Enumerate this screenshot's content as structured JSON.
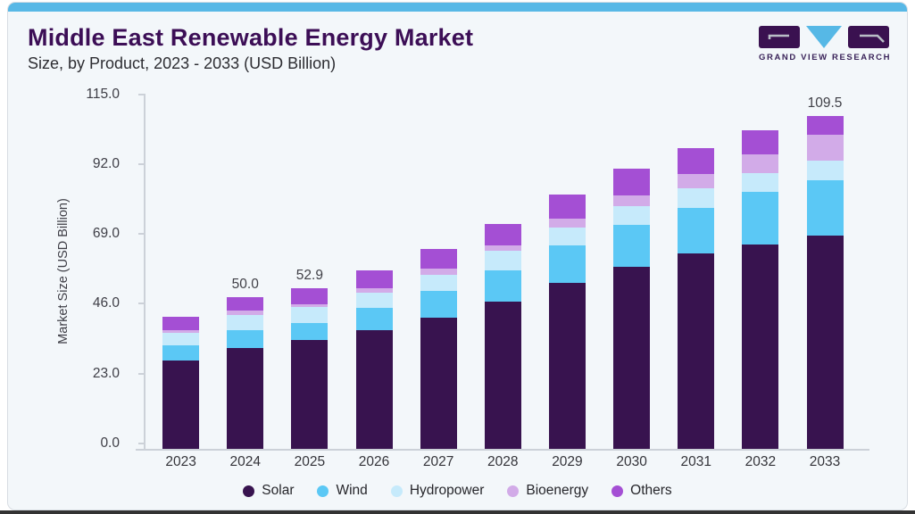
{
  "header": {
    "title": "Middle East Renewable Energy Market",
    "subtitle": "Size, by Product, 2023 - 2033 (USD Billion)"
  },
  "logo": {
    "text": "GRAND VIEW RESEARCH"
  },
  "colors": {
    "accent_strip": "#58b8e6",
    "card_background": "#f3f7fa",
    "card_border": "#d8dde3",
    "title_text": "#3c0e56",
    "axis_line": "#ccd1d8",
    "logo_dark": "#3a1150",
    "logo_light_blue": "#56b8e6"
  },
  "chart_data": {
    "type": "bar",
    "variant": "stacked",
    "title": "Middle East Renewable Energy Market",
    "subtitle": "Size, by Product, 2023 - 2033 (USD Billion)",
    "xlabel": "",
    "ylabel": "Market Size (USD Billion)",
    "ylim": [
      0,
      115
    ],
    "ytick_labels": [
      "0.0",
      "23.0",
      "46.0",
      "69.0",
      "92.0",
      "115.0"
    ],
    "ytick_values": [
      0,
      23,
      46,
      69,
      92,
      115
    ],
    "grid": false,
    "legend_position": "bottom",
    "categories": [
      "2023",
      "2024",
      "2025",
      "2026",
      "2027",
      "2028",
      "2029",
      "2030",
      "2031",
      "2032",
      "2033"
    ],
    "series": [
      {
        "name": "Solar",
        "color": "#38134f",
        "values": [
          29.0,
          33.1,
          35.8,
          39.0,
          43.1,
          48.4,
          54.6,
          60.0,
          64.2,
          67.4,
          70.3
        ]
      },
      {
        "name": "Wind",
        "color": "#5bc8f5",
        "values": [
          5.0,
          6.0,
          5.6,
          7.3,
          8.9,
          10.5,
          12.4,
          13.6,
          15.0,
          17.2,
          18.0
        ]
      },
      {
        "name": "Hydropower",
        "color": "#c6eafb",
        "values": [
          4.1,
          5.1,
          5.2,
          5.2,
          5.4,
          6.4,
          6.0,
          6.3,
          6.6,
          6.3,
          6.5
        ]
      },
      {
        "name": "Bioenergy",
        "color": "#d2abe8",
        "values": [
          0.9,
          1.2,
          0.9,
          1.5,
          2.0,
          1.8,
          2.8,
          3.4,
          4.7,
          6.1,
          8.5
        ]
      },
      {
        "name": "Others",
        "color": "#a44fd4",
        "values": [
          4.5,
          4.6,
          5.4,
          5.7,
          6.3,
          7.0,
          8.0,
          8.9,
          8.5,
          8.0,
          6.2
        ]
      }
    ],
    "totals": [
      43.5,
      50.0,
      52.9,
      58.7,
      65.7,
      74.1,
      83.8,
      92.2,
      99.0,
      105.0,
      109.5
    ],
    "total_labels": {
      "2024": "50.0",
      "2025": "52.9",
      "2033": "109.5"
    }
  }
}
